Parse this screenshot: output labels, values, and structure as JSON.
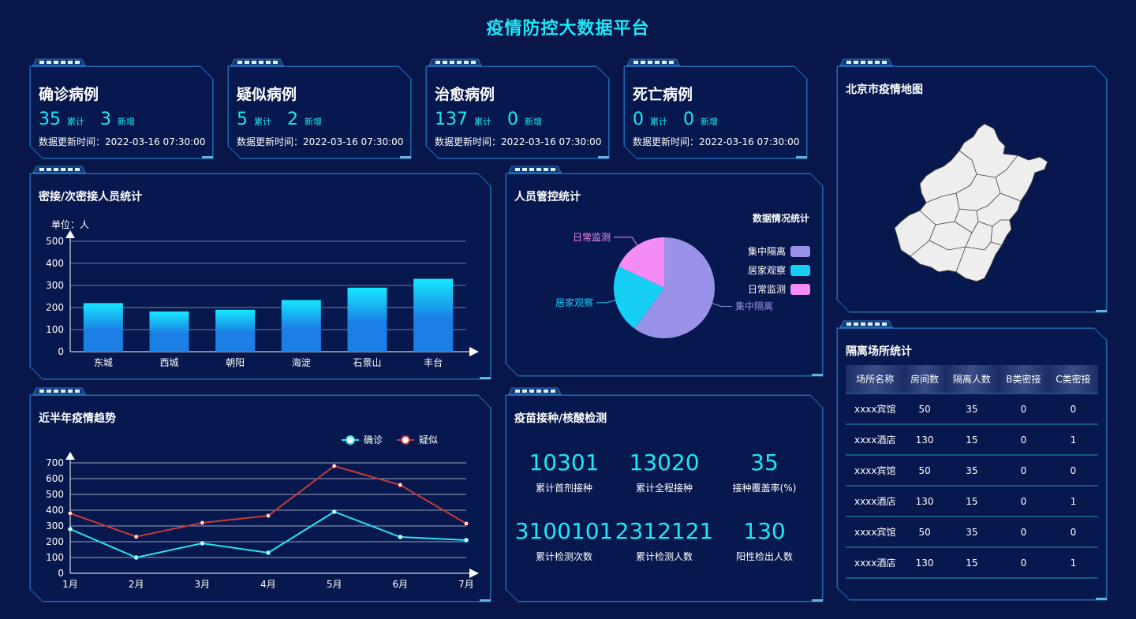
{
  "header": {
    "title": "疫情防控大数据平台"
  },
  "stats": [
    {
      "title": "确诊病例",
      "total": "35",
      "total_unit": "累计",
      "new": "3",
      "new_unit": "新增",
      "time": "数据更新时间：2022-03-16 07:30:00"
    },
    {
      "title": "疑似病例",
      "total": "5",
      "total_unit": "累计",
      "new": "2",
      "new_unit": "新增",
      "time": "数据更新时间：2022-03-16 07:30:00"
    },
    {
      "title": "治愈病例",
      "total": "137",
      "total_unit": "累计",
      "new": "0",
      "new_unit": "新增",
      "time": "数据更新时间：2022-03-16 07:30:00"
    },
    {
      "title": "死亡病例",
      "total": "0",
      "total_unit": "累计",
      "new": "0",
      "new_unit": "新增",
      "time": "数据更新时间：2022-03-16 07:30:00"
    }
  ],
  "map_panel": {
    "title": "北京市疫情地图"
  },
  "close_contact": {
    "title": "密接/次密接人员统计"
  },
  "control": {
    "title": "人员管控统计"
  },
  "trend": {
    "title": "近半年疫情趋势"
  },
  "vaccine": {
    "title": "疫苗接种/核酸检测",
    "items": [
      {
        "value": "10301",
        "label": "累计首剂接种"
      },
      {
        "value": "13020",
        "label": "累计全程接种"
      },
      {
        "value": "35",
        "label": "接种覆盖率(%)"
      },
      {
        "value": "3100101",
        "label": "累计检测次数"
      },
      {
        "value": "2312121",
        "label": "累计检测人数"
      },
      {
        "value": "130",
        "label": "阳性检出人数"
      }
    ]
  },
  "isolation": {
    "title": "隔离场所统计",
    "columns": [
      "场所名称",
      "房间数",
      "隔离人数",
      "B类密接",
      "C类密接"
    ],
    "rows": [
      [
        "xxxx宾馆",
        "50",
        "35",
        "0",
        "0"
      ],
      [
        "xxxx酒店",
        "130",
        "15",
        "0",
        "1"
      ],
      [
        "xxxx宾馆",
        "50",
        "35",
        "0",
        "0"
      ],
      [
        "xxxx酒店",
        "130",
        "15",
        "0",
        "1"
      ],
      [
        "xxxx宾馆",
        "50",
        "35",
        "0",
        "0"
      ],
      [
        "xxxx酒店",
        "130",
        "15",
        "0",
        "1"
      ]
    ]
  },
  "colors": {
    "accent": "#1fe7f6",
    "panel_border": "#1a5fa8",
    "background": "#08164a"
  },
  "chart_data": [
    {
      "type": "bar",
      "unit_label": "单位：人",
      "categories": [
        "东城",
        "西城",
        "朝阳",
        "海淀",
        "石景山",
        "丰台"
      ],
      "values": [
        220,
        182,
        190,
        234,
        290,
        330
      ],
      "ylim": [
        0,
        500
      ],
      "yticks": [
        "0",
        "100",
        "200",
        "300",
        "400",
        "500"
      ],
      "colors": {
        "top": "#16e8ff",
        "bottom": "#1b7fe6"
      }
    },
    {
      "type": "pie",
      "legend_title": "数据情况统计",
      "slices": [
        {
          "name": "集中隔离",
          "value": 60,
          "color": "#9a91e8"
        },
        {
          "name": "居家观察",
          "value": 22,
          "color": "#16cff5"
        },
        {
          "name": "日常监测",
          "value": 18,
          "color": "#f58cf5"
        }
      ]
    },
    {
      "type": "line",
      "categories": [
        "1月",
        "2月",
        "3月",
        "4月",
        "5月",
        "6月",
        "7月"
      ],
      "ylim": [
        0,
        700
      ],
      "yticks": [
        "0",
        "100",
        "200",
        "300",
        "400",
        "500",
        "600",
        "700"
      ],
      "series": [
        {
          "name": "确诊",
          "values": [
            280,
            100,
            190,
            130,
            390,
            230,
            210
          ],
          "color": "#29e3f3"
        },
        {
          "name": "疑似",
          "values": [
            380,
            232,
            320,
            365,
            680,
            560,
            315
          ],
          "color": "#c43b3b"
        }
      ]
    }
  ]
}
